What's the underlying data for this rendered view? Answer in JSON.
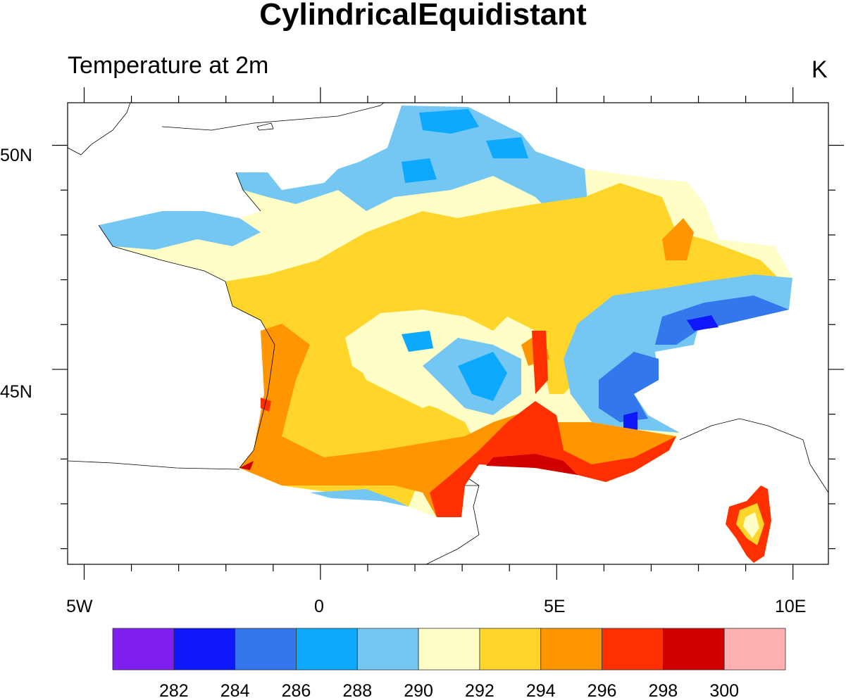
{
  "title": "CylindricalEquidistant",
  "subtitle": "Temperature at 2m",
  "units": "K",
  "map": {
    "projection": "CylindricalEquidistant",
    "lon_range": [
      -5.35,
      10.75
    ],
    "lat_range": [
      40.65,
      50.95
    ],
    "lon_ticks": [
      {
        "value": -5,
        "label": "5W"
      },
      {
        "value": 0,
        "label": "0"
      },
      {
        "value": 5,
        "label": "5E"
      },
      {
        "value": 10,
        "label": "10E"
      }
    ],
    "lat_ticks": [
      {
        "value": 50,
        "label": "50N"
      },
      {
        "value": 45,
        "label": "45N"
      }
    ]
  },
  "colorbar": {
    "labels": [
      "282",
      "284",
      "286",
      "288",
      "290",
      "292",
      "294",
      "296",
      "298",
      "300"
    ],
    "colors": [
      "#7F20EE",
      "#0F17FB",
      "#3476EC",
      "#0CA9FD",
      "#74C7F3",
      "#FEFEC6",
      "#FFD52A",
      "#FF9500",
      "#FF3000",
      "#D10000",
      "#FFB0B0"
    ]
  }
}
